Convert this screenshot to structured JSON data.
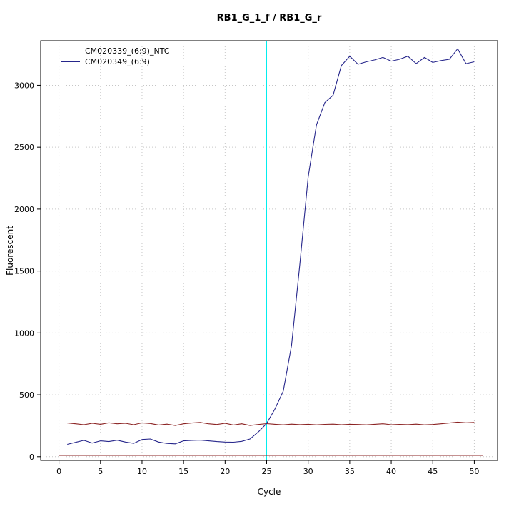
{
  "chart_data": {
    "type": "line",
    "title": "RB1_G_1_f / RB1_G_r",
    "xlabel": "Cycle",
    "ylabel": "Fluorescent",
    "xlim": [
      -2.2,
      52.8
    ],
    "ylim": [
      -30,
      3360
    ],
    "xticks": [
      0,
      5,
      10,
      15,
      20,
      25,
      30,
      35,
      40,
      45,
      50
    ],
    "yticks": [
      0,
      500,
      1000,
      1500,
      2000,
      2500,
      3000
    ],
    "grid": "dotted",
    "grid_color": "#c6c6c6",
    "legend_position": "top-left",
    "threshold_cycle_line": {
      "x": 25,
      "color": "#00eeee"
    },
    "baseline_line": {
      "y": 10,
      "x_start": 0,
      "x_end": 51,
      "color": "#8b2323"
    },
    "cycles": [
      1,
      2,
      3,
      4,
      5,
      6,
      7,
      8,
      9,
      10,
      11,
      12,
      13,
      14,
      15,
      16,
      17,
      18,
      19,
      20,
      21,
      22,
      23,
      24,
      25,
      26,
      27,
      28,
      29,
      30,
      31,
      32,
      33,
      34,
      35,
      36,
      37,
      38,
      39,
      40,
      41,
      42,
      43,
      44,
      45,
      46,
      47,
      48,
      49,
      50
    ],
    "series": [
      {
        "name": "CM020339_(6:9)_NTC",
        "color": "#8b2323",
        "values": [
          272,
          266,
          258,
          270,
          262,
          274,
          266,
          270,
          258,
          273,
          268,
          256,
          263,
          252,
          266,
          272,
          277,
          266,
          260,
          270,
          256,
          266,
          252,
          260,
          267,
          262,
          257,
          263,
          259,
          262,
          257,
          261,
          263,
          258,
          262,
          260,
          257,
          262,
          266,
          258,
          261,
          259,
          263,
          257,
          260,
          266,
          272,
          279,
          274,
          277
        ]
      },
      {
        "name": "CM020349_(6:9)",
        "color": "#26268b",
        "values": [
          100,
          116,
          132,
          110,
          128,
          122,
          133,
          118,
          108,
          139,
          143,
          118,
          107,
          104,
          128,
          132,
          134,
          128,
          122,
          118,
          117,
          124,
          143,
          200,
          268,
          385,
          530,
          900,
          1560,
          2260,
          2680,
          2860,
          2920,
          3160,
          3235,
          3170,
          3190,
          3205,
          3225,
          3195,
          3210,
          3235,
          3175,
          3225,
          3185,
          3200,
          3210,
          3295,
          3175,
          3190
        ]
      }
    ]
  }
}
